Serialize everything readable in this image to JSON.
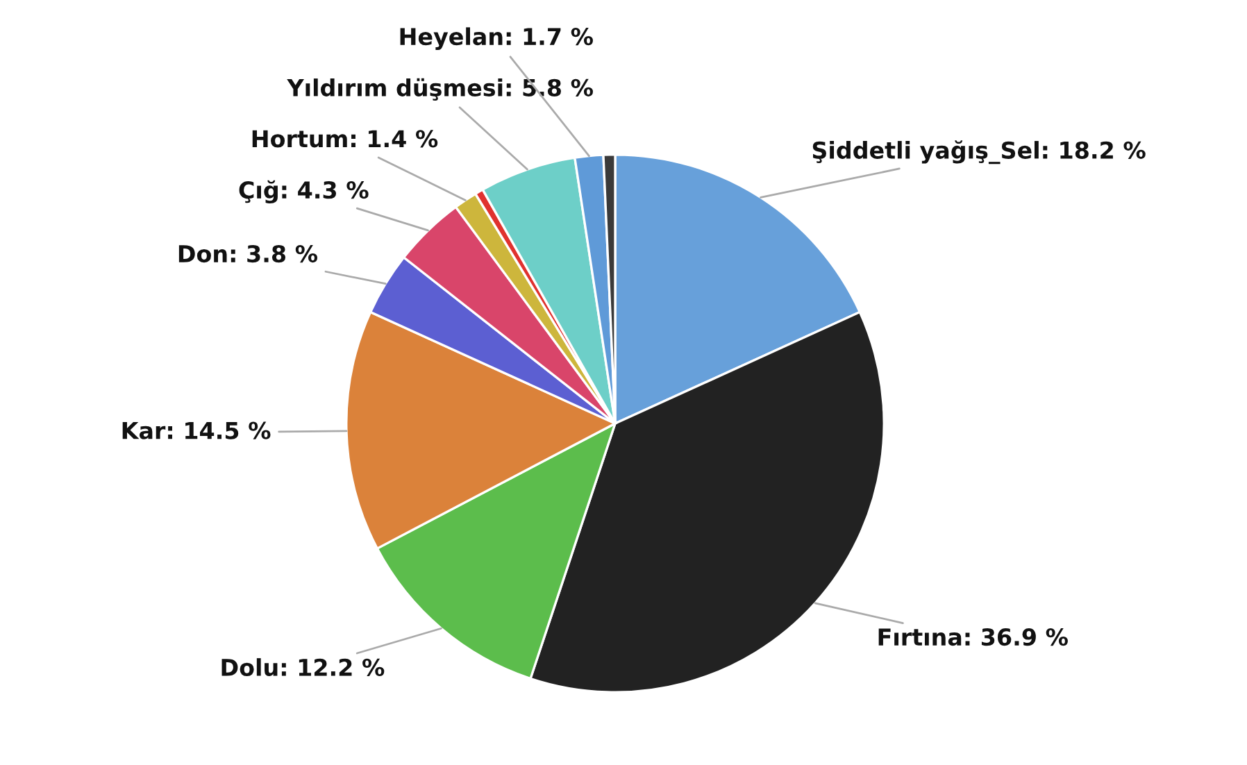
{
  "chart_data": {
    "type": "pie",
    "categories": [
      "Şiddetli yağış_Sel",
      "Fırtına",
      "Dolu",
      "Kar",
      "Don",
      "Çığ",
      "Hortum",
      null,
      "Yıldırım düşmesi",
      "Heyelan",
      null
    ],
    "values": [
      18.2,
      36.9,
      12.2,
      14.5,
      3.8,
      4.3,
      1.4,
      0.5,
      5.8,
      1.7,
      0.7
    ],
    "value_labels": [
      "18.2 %",
      "36.9 %",
      "12.2 %",
      "14.5 %",
      "3.8 %",
      "4.3 %",
      "1.4 %",
      null,
      "5.8 %",
      "1.7 %",
      null
    ],
    "colors": [
      "#67a0da",
      "#222222",
      "#5cbd4c",
      "#db823a",
      "#5c5fd2",
      "#d9456a",
      "#cdb63c",
      "#e0322f",
      "#6dcfc8",
      "#5f9ad8",
      "#3a3a3a"
    ]
  }
}
